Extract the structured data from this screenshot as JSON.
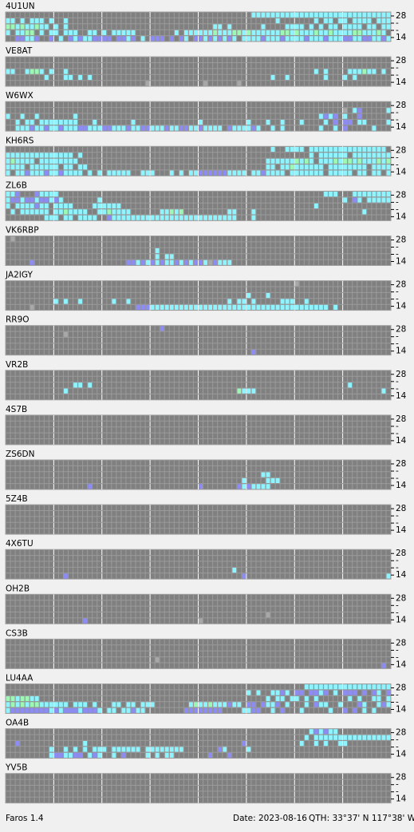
{
  "band_labels": [
    "28",
    "-",
    "-",
    "14"
  ],
  "colors": {
    "c": "#8ef4ff",
    "g": "#9cf8b4",
    "b": "#8c8cf4",
    "s": "#a8a8a8"
  },
  "panels": [
    {
      "name": "4U1UN",
      "rows": [
        "...................................................ccccccccccccccccccccccccccccc",
        "cc.c.ccc.c..c...........................................c.......c.cc.cc.cccc.ccccc.ccccc.c",
        "ggcgccgcc.c.c..............................cc.c......c....cccc.c.c.cc.cccc.cc.ccc",
        "c.ccgg.c.cc.ccc..cc.c.ccccc........c.ccccccgcccggcgccccccggcgcccgccgccccggcccgc",
        "..bbccb..b.c.bcbccbbbb.bbcb.c.bbb.b.bc.bbcbcbcbc.ccccbcccbccccbcccbcccbbccbbccbc"
      ]
    },
    {
      "name": "VE8AT",
      "rows": [
        "................................................................................",
        "................................................................................",
        "cc..cggc.c..c...................................................c.c....cccgcc.c.cc.cc.c....",
        "........c...cc.c.c.....................................c..c.......c...c.c........",
        ".............................s...........s......s..............................."
      ]
    },
    {
      "name": "W6WX",
      "rows": [
        "................................................................................",
        "......................................................................s.cb.....c.",
        "c..c..c.......c..................................................cbcb.c..b.",
        "..c.cc.cccccccc...c.......c.............c.........c...c..c...c....c.b.bb.cc....c",
        "..cccbccbccbcccbbcccbbcccbccbbcccbccbbccbcccc.bccccbc..c.c.......c..c.b.....c..."
      ]
    },
    {
      "name": "KH6RS",
      "rows": [
        ".......................................................c..cccc.cccccccccccccccc",
        "cccccccccccccc.c...............................................c.cccccc.cccccccccc.ccc",
        "cgcccc.cccccccc.......................................ccccccgcgc.cccgcggcgcccgcg",
        "cccc.cccccc.cc.cc.....................................cc.ccgcccccc.cccccccc.cccccc",
        "c.ccbcccbccbcccc.c.c.ccccc..ccc...c.c.ccbbbbbbcccc.ccbcccc.ccccccc.ccccc.cc.cc.cc.c"
      ]
    },
    {
      "name": "ZL6B",
      "rows": [
        "ccb...bcccc.......................................................ccc...cccccccc",
        "cbbcbbcbbcbc.......c..................................................c.bc.ccccccbcccccc",
        "c.ccccbcc.cccc....cccccc........................................c...............cc",
        ".c.cccccc.ccgcccc..ccgcccc......ccgcg.........cc...c......................c.....",
        "........ccc.cc.cccc..bcccccccccccccccccccccccccc...c............................"
      ]
    },
    {
      "name": "VK6RBP",
      "rows": [
        ".s..............................................................................",
        "................................................................................",
        "...............................c................................................",
        "...............................c.cc.............................................",
        ".....b...................bbcbcbcbccbcbcbbcsbccc................................."
      ]
    },
    {
      "name": "JA2IGY",
      "rows": [
        "............................................................s...................",
        "................................................................................",
        "..................................................c...c.........................",
        "..........c.c..c......c..c....................c.cc.c.....ccc..c.................",
        ".....s.....................bbbccccccccccccccccccccccccccccccccccccc.c............"
      ]
    },
    {
      "name": "RR9O",
      "rows": [
        "................................b...............................................",
        "............s...................................................................",
        "................................................................................",
        "................................................................................",
        "...................................................b............................"
      ]
    },
    {
      "name": "VR2B",
      "rows": [
        "................................................................................",
        "................................................................................",
        "..............cc.c.....................................................c........",
        "............c...................................gccc..........................c.",
        "................................................................................"
      ]
    },
    {
      "name": "4S7B",
      "rows": [
        "................................................................................",
        "................................................................................",
        "................................................................................",
        "................................................................................",
        "................................................................................"
      ]
    },
    {
      "name": "ZS6DN",
      "rows": [
        "................................................................................",
        "................................................................................",
        ".....................................................cc.........................",
        ".................................................c....ccc.......................",
        ".................b......................b.......bcbcccc.........................."
      ]
    },
    {
      "name": "5Z4B",
      "rows": [
        "................................................................................",
        "................................................................................",
        "................................................................................",
        "................................................................................",
        "................................................................................"
      ]
    },
    {
      "name": "4X6TU",
      "rows": [
        "................................................................................",
        "................................................................................",
        "................................................................................",
        "...............................................c................................",
        "............b....................................b.............................c"
      ]
    },
    {
      "name": "OH2B",
      "rows": [
        "................................................................................",
        "................................................................................",
        "................................................................................",
        "......................................................s.........................",
        "................b.......................s......................................."
      ]
    },
    {
      "name": "CS3B",
      "rows": [
        "................................................................................",
        "................................................................................",
        "................................................................................",
        "...............................s................................................",
        "..............................................................................b."
      ]
    },
    {
      "name": "LU4AA",
      "rows": [
        "..............................................................cccccccccccccccccc",
        "..................................................c.c..ccbc.bb.bbcb.c.bbb.b.bc.b",
        "ggcggcc...............................................c.cc.cc.c.c......c.c..cc.c.cc.c.c.",
        "cgcgcggcccccc.ccc.c...cc.cc.ccc.......cgccgcccbcc.bb.bccb.c...c.bcc..c...bc..cbc",
        "cbbbbbbbbcbcbbbcbbbc.cc.ccbcc........bbbbbbbb....ccbb..c.b...c.....c..b.b.c.c..."
      ]
    },
    {
      "name": "OA4B",
      "rows": [
        "...............................................................cbcbcc...........",
        "..............................................................c.cccccccccccccccc",
        "..b.............c................................b...........c..c.c..cc..........",
        ".........c..c.c.c.ccc.cccccc.cccccccc.......bc....c..............................",
        ".........cbbccbb.cbc..c.b....c.c.cc.......b...b................................."
      ]
    },
    {
      "name": "YV5B",
      "rows": [
        "................................................................................",
        "................................................................................",
        "................................................................................",
        "................................................................................",
        "................................................................................"
      ]
    }
  ],
  "footer": {
    "app": "Faros 1.4",
    "date": "Date: 2023-08-16",
    "qth": "QTH: 33°37' N  117°38' W"
  }
}
